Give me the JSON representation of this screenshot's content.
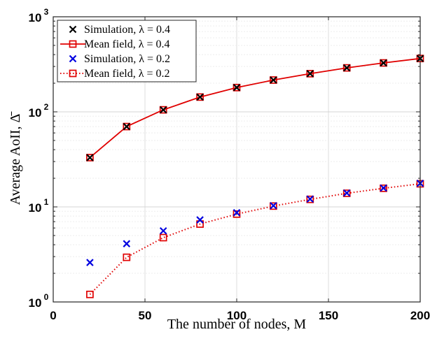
{
  "chart_data": {
    "type": "line",
    "xlabel": "The number of nodes, M",
    "ylabel": "Average AoII, Δ̄",
    "xlim": [
      0,
      200
    ],
    "ylim": [
      1,
      1000
    ],
    "yscale": "log",
    "grid": true,
    "legend_position": "top-left",
    "x_ticks": [
      "0",
      "50",
      "100",
      "150",
      "200"
    ],
    "y_ticks": [
      {
        "base": "10",
        "exp": "0"
      },
      {
        "base": "10",
        "exp": "1"
      },
      {
        "base": "10",
        "exp": "2"
      },
      {
        "base": "10",
        "exp": "3"
      }
    ],
    "series": [
      {
        "name": "Simulation, λ = 0.4",
        "style": "marker-x",
        "color": "#000000",
        "x": [
          20,
          40,
          60,
          80,
          100,
          120,
          140,
          160,
          180,
          200
        ],
        "y": [
          33,
          70,
          105,
          143,
          180,
          216,
          252,
          290,
          327,
          364
        ]
      },
      {
        "name": "Mean field, λ = 0.4",
        "style": "line-solid-square",
        "color": "#e00000",
        "x": [
          20,
          40,
          60,
          80,
          100,
          120,
          140,
          160,
          180,
          200
        ],
        "y": [
          33,
          70,
          105,
          143,
          180,
          216,
          252,
          290,
          327,
          364
        ]
      },
      {
        "name": "Simulation, λ = 0.2",
        "style": "marker-x",
        "color": "#0000e0",
        "x": [
          20,
          40,
          60,
          80,
          100,
          120,
          140,
          160,
          180,
          200
        ],
        "y": [
          2.6,
          4.1,
          5.6,
          7.3,
          8.7,
          10.3,
          12.1,
          14.0,
          15.8,
          17.7
        ]
      },
      {
        "name": "Mean field, λ = 0.2",
        "style": "line-dotted-square",
        "color": "#e00000",
        "x": [
          20,
          40,
          60,
          80,
          100,
          120,
          140,
          160,
          180,
          200
        ],
        "y": [
          1.2,
          2.95,
          4.75,
          6.6,
          8.4,
          10.2,
          12.0,
          13.9,
          15.7,
          17.5
        ]
      }
    ]
  }
}
